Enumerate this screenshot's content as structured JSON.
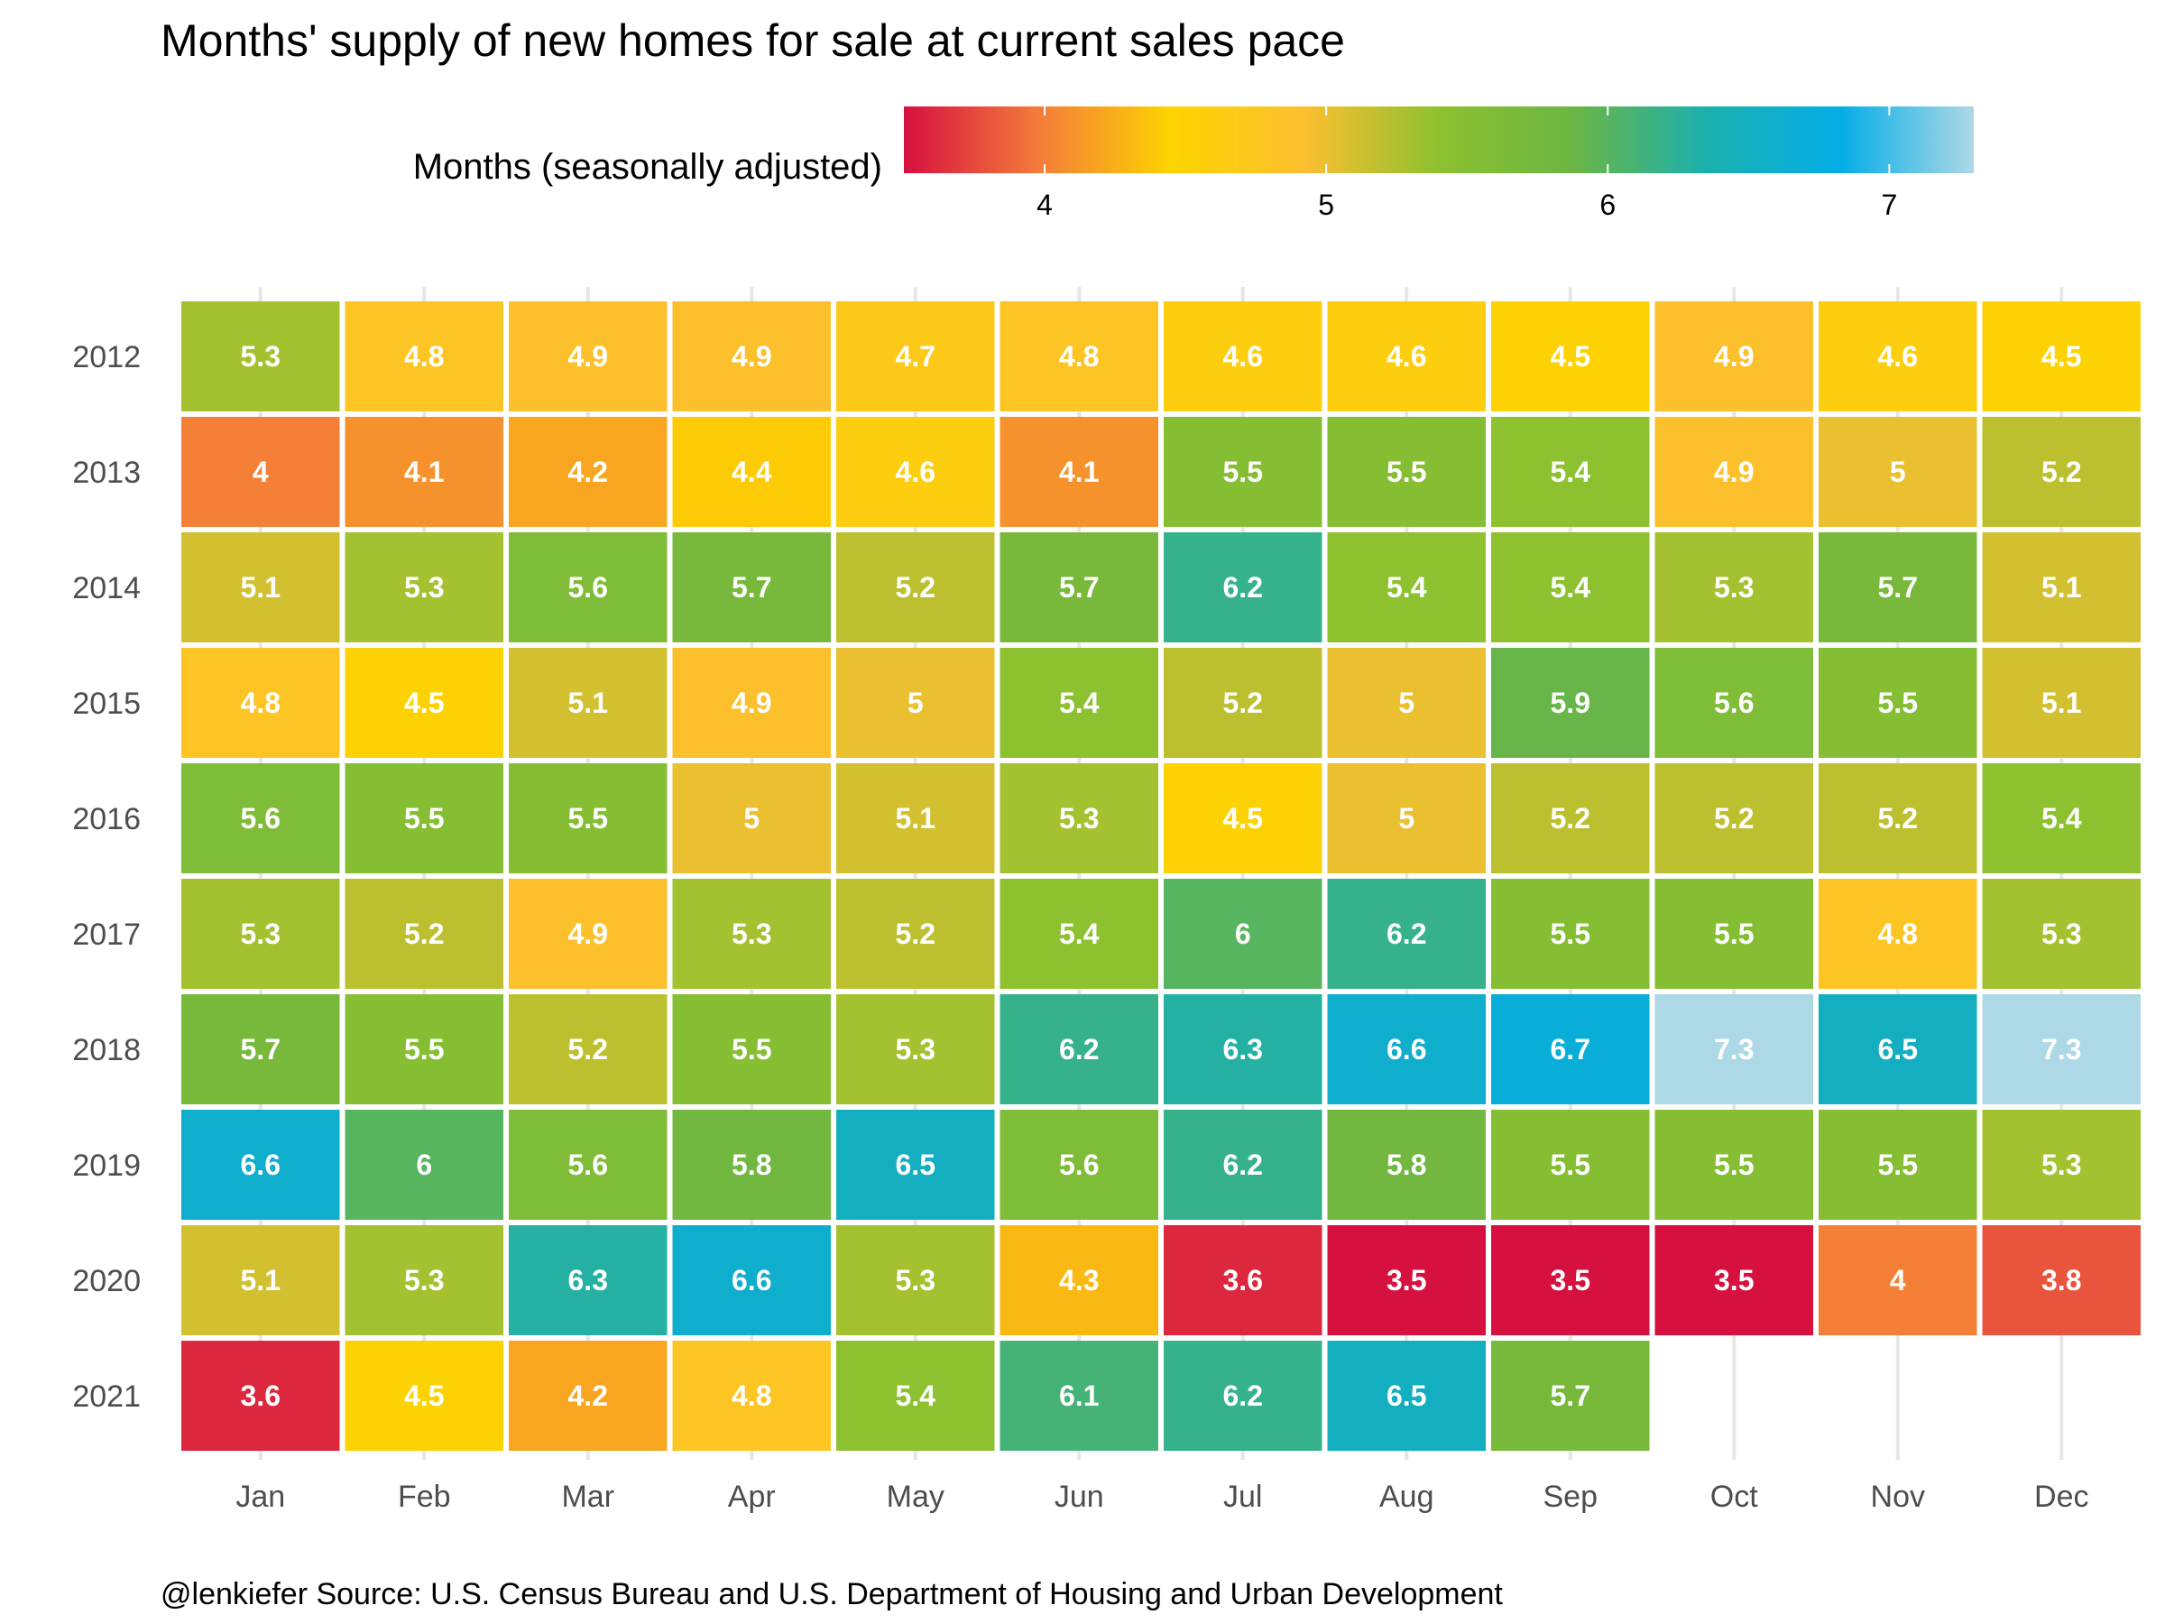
{
  "chart_data": {
    "type": "heatmap",
    "title": "Months' supply of new homes for sale at current sales pace",
    "legend": {
      "title": "Months (seasonally adjusted)",
      "ticks": [
        4,
        5,
        6,
        7
      ],
      "range": [
        3.5,
        7.3
      ],
      "position": "top",
      "colors": [
        "#d6103f",
        "#f47b3a",
        "#fdd400",
        "#fcbf30",
        "#8dc12f",
        "#6cb543",
        "#1bb0ae",
        "#03ade7",
        "#add8e6"
      ]
    },
    "x_categories": [
      "Jan",
      "Feb",
      "Mar",
      "Apr",
      "May",
      "Jun",
      "Jul",
      "Aug",
      "Sep",
      "Oct",
      "Nov",
      "Dec"
    ],
    "y_categories": [
      "2012",
      "2013",
      "2014",
      "2015",
      "2016",
      "2017",
      "2018",
      "2019",
      "2020",
      "2021"
    ],
    "values": [
      [
        5.3,
        4.8,
        4.9,
        4.9,
        4.7,
        4.8,
        4.6,
        4.6,
        4.5,
        4.9,
        4.6,
        4.5
      ],
      [
        4,
        4.1,
        4.2,
        4.4,
        4.6,
        4.1,
        5.5,
        5.5,
        5.4,
        4.9,
        5,
        5.2
      ],
      [
        5.1,
        5.3,
        5.6,
        5.7,
        5.2,
        5.7,
        6.2,
        5.4,
        5.4,
        5.3,
        5.7,
        5.1
      ],
      [
        4.8,
        4.5,
        5.1,
        4.9,
        5,
        5.4,
        5.2,
        5,
        5.9,
        5.6,
        5.5,
        5.1
      ],
      [
        5.6,
        5.5,
        5.5,
        5,
        5.1,
        5.3,
        4.5,
        5,
        5.2,
        5.2,
        5.2,
        5.4
      ],
      [
        5.3,
        5.2,
        4.9,
        5.3,
        5.2,
        5.4,
        6,
        6.2,
        5.5,
        5.5,
        4.8,
        5.3
      ],
      [
        5.7,
        5.5,
        5.2,
        5.5,
        5.3,
        6.2,
        6.3,
        6.6,
        6.7,
        7.3,
        6.5,
        7.3
      ],
      [
        6.6,
        6,
        5.6,
        5.8,
        6.5,
        5.6,
        6.2,
        5.8,
        5.5,
        5.5,
        5.5,
        5.3
      ],
      [
        5.1,
        5.3,
        6.3,
        6.6,
        5.3,
        4.3,
        3.6,
        3.5,
        3.5,
        3.5,
        4,
        3.8
      ],
      [
        3.6,
        4.5,
        4.2,
        4.8,
        5.4,
        6.1,
        6.2,
        6.5,
        5.7,
        null,
        null,
        null
      ]
    ],
    "grid": true
  },
  "caption": "@lenkiefer Source: U.S. Census Bureau and  U.S. Department of Housing and Urban Development"
}
